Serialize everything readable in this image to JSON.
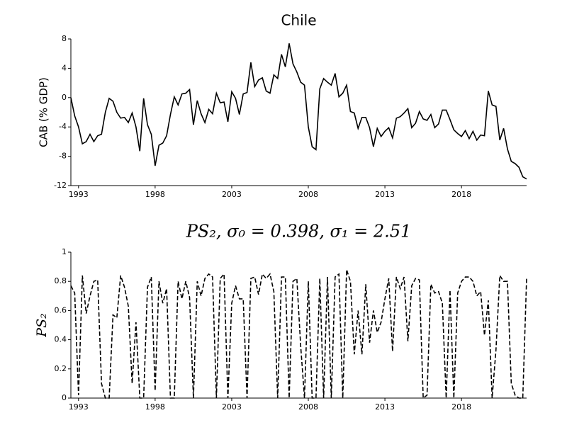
{
  "chart_data": [
    {
      "type": "line",
      "title": "Chile",
      "y_label": "CAB (% GDP)",
      "color": "#000000",
      "dash": false,
      "xlim": [
        1992.5,
        2022.25
      ],
      "xticks": [
        1993,
        1998,
        2003,
        2008,
        2013,
        2018
      ],
      "ylim": [
        -12,
        8
      ],
      "yticks": [
        -12,
        -8,
        -4,
        0,
        4,
        8
      ],
      "x": [
        1992.5,
        1992.75,
        1993,
        1993.25,
        1993.5,
        1993.75,
        1994,
        1994.25,
        1994.5,
        1994.75,
        1995,
        1995.25,
        1995.5,
        1995.75,
        1996,
        1996.25,
        1996.5,
        1996.75,
        1997,
        1997.25,
        1997.5,
        1997.75,
        1998,
        1998.25,
        1998.5,
        1998.75,
        1999,
        1999.25,
        1999.5,
        1999.75,
        2000,
        2000.25,
        2000.5,
        2000.75,
        2001,
        2001.25,
        2001.5,
        2001.75,
        2002,
        2002.25,
        2002.5,
        2002.75,
        2003,
        2003.25,
        2003.5,
        2003.75,
        2004,
        2004.25,
        2004.5,
        2004.75,
        2005,
        2005.25,
        2005.5,
        2005.75,
        2006,
        2006.25,
        2006.5,
        2006.75,
        2007,
        2007.25,
        2007.5,
        2007.75,
        2008,
        2008.25,
        2008.5,
        2008.75,
        2009,
        2009.25,
        2009.5,
        2009.75,
        2010,
        2010.25,
        2010.5,
        2010.75,
        2011,
        2011.25,
        2011.5,
        2011.75,
        2012,
        2012.25,
        2012.5,
        2012.75,
        2013,
        2013.25,
        2013.5,
        2013.75,
        2014,
        2014.25,
        2014.5,
        2014.75,
        2015,
        2015.25,
        2015.5,
        2015.75,
        2016,
        2016.25,
        2016.5,
        2016.75,
        2017,
        2017.25,
        2017.5,
        2017.75,
        2018,
        2018.25,
        2018.5,
        2018.75,
        2019,
        2019.25,
        2019.5,
        2019.75,
        2020,
        2020.25,
        2020.5,
        2020.75,
        2021,
        2021.25,
        2021.5,
        2021.75,
        2022,
        2022.25
      ],
      "values": [
        0,
        -2.5,
        -4,
        -6.3,
        -6,
        -5,
        -6,
        -5.2,
        -5,
        -2,
        -0.1,
        -0.5,
        -2,
        -2.8,
        -2.7,
        -3.4,
        -2.1,
        -4,
        -7.3,
        -0.1,
        -3.7,
        -5,
        -9.3,
        -6.5,
        -6.2,
        -5.2,
        -2.3,
        0.1,
        -1,
        0.5,
        0.6,
        1.1,
        -3.7,
        -0.4,
        -2.2,
        -3.4,
        -1.6,
        -2.2,
        0.6,
        -0.7,
        -0.6,
        -3.3,
        0.8,
        -0.1,
        -2.3,
        0.5,
        0.7,
        4.8,
        1.5,
        2.4,
        2.7,
        0.9,
        0.6,
        3.1,
        2.6,
        5.9,
        4.2,
        7.4,
        4.6,
        3.5,
        2.1,
        1.7,
        -4,
        -6.7,
        -7.1,
        1.2,
        2.6,
        2.1,
        1.7,
        3.3,
        0.1,
        0.6,
        1.7,
        -1.9,
        -2.1,
        -4.2,
        -2.7,
        -2.7,
        -4.1,
        -6.7,
        -4.2,
        -5.3,
        -4.6,
        -4.1,
        -5.5,
        -2.8,
        -2.6,
        -2.1,
        -1.5,
        -4.1,
        -3.5,
        -1.9,
        -2.9,
        -3.1,
        -2.3,
        -4.1,
        -3.6,
        -1.7,
        -1.7,
        -3,
        -4.4,
        -4.9,
        -5.3,
        -4.5,
        -5.6,
        -4.6,
        -5.8,
        -5.1,
        -5.2,
        0.9,
        -1,
        -1.2,
        -5.8,
        -4.2,
        -7,
        -8.7,
        -9,
        -9.5,
        -10.8,
        -11.1
      ]
    },
    {
      "type": "line",
      "title": "PS₂, σ₀ = 0.398, σ₁ = 2.51",
      "y_label": "PS₂",
      "color": "#000000",
      "dash": true,
      "xlim": [
        1992.5,
        2022.25
      ],
      "xticks": [
        1993,
        1998,
        2003,
        2008,
        2013,
        2018
      ],
      "ylim": [
        0,
        1
      ],
      "yticks": [
        0,
        0.2,
        0.4,
        0.6,
        0.8,
        1
      ],
      "x": [
        1992.5,
        1992.75,
        1993,
        1993.25,
        1993.5,
        1993.75,
        1994,
        1994.25,
        1994.5,
        1994.75,
        1995,
        1995.25,
        1995.5,
        1995.75,
        1996,
        1996.25,
        1996.5,
        1996.75,
        1997,
        1997.25,
        1997.5,
        1997.75,
        1998,
        1998.25,
        1998.5,
        1998.75,
        1999,
        1999.25,
        1999.5,
        1999.75,
        2000,
        2000.25,
        2000.5,
        2000.75,
        2001,
        2001.25,
        2001.5,
        2001.75,
        2002,
        2002.25,
        2002.5,
        2002.75,
        2003,
        2003.25,
        2003.5,
        2003.75,
        2004,
        2004.25,
        2004.5,
        2004.75,
        2005,
        2005.25,
        2005.5,
        2005.75,
        2006,
        2006.25,
        2006.5,
        2006.75,
        2007,
        2007.25,
        2007.5,
        2007.75,
        2008,
        2008.25,
        2008.5,
        2008.75,
        2009,
        2009.25,
        2009.5,
        2009.75,
        2010,
        2010.25,
        2010.5,
        2010.75,
        2011,
        2011.25,
        2011.5,
        2011.75,
        2012,
        2012.25,
        2012.5,
        2012.75,
        2013,
        2013.25,
        2013.5,
        2013.75,
        2014,
        2014.25,
        2014.5,
        2014.75,
        2015,
        2015.25,
        2015.5,
        2015.75,
        2016,
        2016.25,
        2016.5,
        2016.75,
        2017,
        2017.25,
        2017.5,
        2017.75,
        2018,
        2018.25,
        2018.5,
        2018.75,
        2019,
        2019.25,
        2019.5,
        2019.75,
        2020,
        2020.25,
        2020.5,
        2020.75,
        2021,
        2021.25,
        2021.5,
        2021.75,
        2022,
        2022.25
      ],
      "values": [
        0.77,
        0.72,
        0.02,
        0.84,
        0.58,
        0.7,
        0.8,
        0.81,
        0.1,
        0,
        0,
        0.57,
        0.55,
        0.84,
        0.76,
        0.63,
        0.1,
        0.52,
        0,
        0,
        0.76,
        0.83,
        0.05,
        0.8,
        0.65,
        0.75,
        0,
        0,
        0.8,
        0.68,
        0.8,
        0.69,
        0,
        0.8,
        0.7,
        0.82,
        0.85,
        0.83,
        0,
        0.82,
        0.85,
        0,
        0.65,
        0.77,
        0.68,
        0.68,
        0,
        0.82,
        0.83,
        0.71,
        0.85,
        0.82,
        0.85,
        0.73,
        0,
        0.83,
        0.83,
        0,
        0.8,
        0.82,
        0.36,
        0,
        0.8,
        0,
        0,
        0.82,
        0,
        0.83,
        0,
        0.83,
        0.85,
        0,
        0.88,
        0.8,
        0.3,
        0.6,
        0.3,
        0.78,
        0.38,
        0.6,
        0.45,
        0.52,
        0.68,
        0.82,
        0.32,
        0.83,
        0.75,
        0.83,
        0.39,
        0.77,
        0.82,
        0.81,
        0,
        0.02,
        0.78,
        0.72,
        0.73,
        0.65,
        0,
        0.74,
        0,
        0.72,
        0.8,
        0.83,
        0.83,
        0.8,
        0.7,
        0.73,
        0.43,
        0.67,
        0,
        0.33,
        0.84,
        0.8,
        0.8,
        0.1,
        0.02,
        0,
        0,
        0.82
      ]
    }
  ]
}
